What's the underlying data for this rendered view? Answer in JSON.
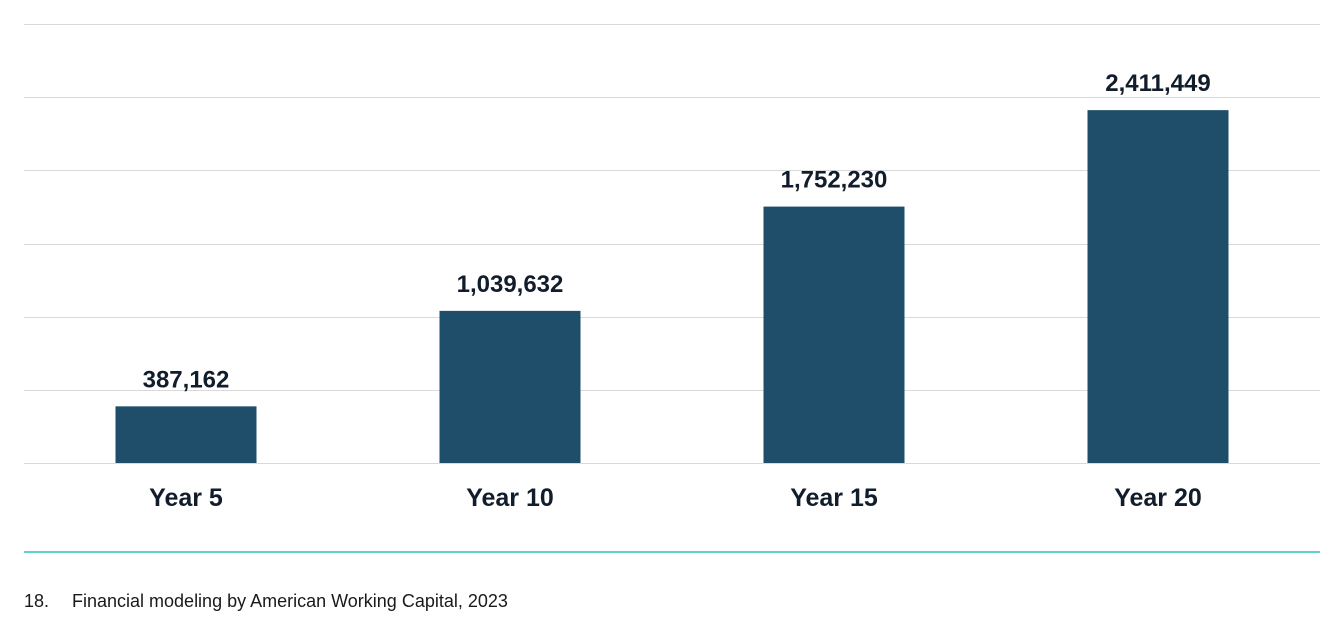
{
  "chart_data": {
    "type": "bar",
    "categories": [
      "Year 5",
      "Year 10",
      "Year 15",
      "Year 20"
    ],
    "values": [
      387162,
      1039632,
      1752230,
      2411449
    ],
    "data_labels": [
      "387,162",
      "1,039,632",
      "1,752,230",
      "2,411,449"
    ],
    "title": "",
    "xlabel": "",
    "ylabel": "",
    "ylim": [
      0,
      3000000
    ],
    "grid": true,
    "legend": "none",
    "colors": {
      "bar": "#1f4e6b",
      "gridline": "#d9d9d9",
      "text": "#121d2b",
      "footer_rule": "#5fd3c6"
    }
  },
  "footnote": {
    "number": "18.",
    "text": "Financial modeling by American Working Capital, 2023"
  }
}
